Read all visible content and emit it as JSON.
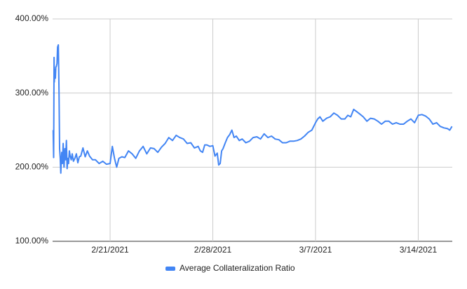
{
  "chart_data": {
    "type": "line",
    "x": [
      48.12,
      48.15,
      48.18,
      48.2,
      48.23,
      48.27,
      48.3,
      48.34,
      48.38,
      48.42,
      48.47,
      48.52,
      48.56,
      48.6,
      48.64,
      48.7,
      48.75,
      48.8,
      48.86,
      48.92,
      48.97,
      49.02,
      49.07,
      49.12,
      49.17,
      49.22,
      49.28,
      49.35,
      49.42,
      49.5,
      49.6,
      49.7,
      49.8,
      49.9,
      50.0,
      50.15,
      50.3,
      50.45,
      50.6,
      50.8,
      51.0,
      51.25,
      51.5,
      51.75,
      52.0,
      52.15,
      52.3,
      52.45,
      52.6,
      52.8,
      53.0,
      53.25,
      53.5,
      53.75,
      54.0,
      54.25,
      54.5,
      54.75,
      55.0,
      55.25,
      55.5,
      55.75,
      56.0,
      56.25,
      56.5,
      56.75,
      57.0,
      57.25,
      57.5,
      57.75,
      58.0,
      58.15,
      58.3,
      58.45,
      58.6,
      58.8,
      59.0,
      59.15,
      59.3,
      59.4,
      59.5,
      59.6,
      59.7,
      59.85,
      60.0,
      60.15,
      60.3,
      60.45,
      60.6,
      60.8,
      61.0,
      61.25,
      61.5,
      61.75,
      62.0,
      62.25,
      62.5,
      62.75,
      63.0,
      63.25,
      63.5,
      63.75,
      64.0,
      64.25,
      64.5,
      64.75,
      65.0,
      65.25,
      65.5,
      65.75,
      66.0,
      66.15,
      66.3,
      66.5,
      66.75,
      67.0,
      67.25,
      67.5,
      67.75,
      68.0,
      68.2,
      68.4,
      68.6,
      68.8,
      69.0,
      69.25,
      69.5,
      69.75,
      70.0,
      70.25,
      70.5,
      70.75,
      71.0,
      71.25,
      71.5,
      71.75,
      72.0,
      72.25,
      72.5,
      72.75,
      73.0,
      73.25,
      73.5,
      73.75,
      74.0,
      74.25,
      74.5,
      74.75,
      75.0,
      75.15,
      75.3
    ],
    "series": [
      {
        "name": "Average Collateralization Ratio",
        "color": "#4285f4",
        "values": [
          250,
          213,
          348,
          315,
          332,
          320,
          335,
          336,
          340,
          362,
          365,
          300,
          225,
          212,
          192,
          220,
          205,
          232,
          200,
          225,
          210,
          236,
          198,
          212,
          205,
          222,
          215,
          210,
          218,
          208,
          212,
          218,
          206,
          214,
          215,
          226,
          214,
          222,
          215,
          210,
          210,
          205,
          208,
          204,
          205,
          228,
          212,
          200,
          212,
          214,
          213,
          222,
          218,
          212,
          222,
          228,
          218,
          226,
          225,
          220,
          227,
          232,
          240,
          236,
          243,
          240,
          238,
          232,
          233,
          226,
          228,
          222,
          220,
          230,
          230,
          228,
          229,
          215,
          219,
          203,
          205,
          222,
          225,
          233,
          240,
          244,
          250,
          240,
          242,
          236,
          238,
          233,
          235,
          240,
          241,
          238,
          245,
          240,
          242,
          238,
          237,
          233,
          233,
          235,
          235,
          236,
          238,
          242,
          247,
          250,
          260,
          265,
          268,
          262,
          266,
          268,
          273,
          270,
          265,
          265,
          270,
          268,
          278,
          275,
          272,
          268,
          262,
          266,
          265,
          262,
          258,
          262,
          262,
          258,
          260,
          258,
          258,
          262,
          265,
          260,
          270,
          271,
          269,
          265,
          258,
          260,
          255,
          253,
          252,
          250,
          255
        ]
      }
    ],
    "xlim": [
      48.08,
      75.32
    ],
    "xticks": [
      {
        "value": 52,
        "label": "2/21/2021"
      },
      {
        "value": 59,
        "label": "2/28/2021"
      },
      {
        "value": 66,
        "label": "3/7/2021"
      },
      {
        "value": 73,
        "label": "3/14/2021"
      }
    ],
    "ylim": [
      100,
      400
    ],
    "yticks": [
      {
        "value": 100,
        "label": "100.00%"
      },
      {
        "value": 200,
        "label": "200.00%"
      },
      {
        "value": 300,
        "label": "300.00%"
      },
      {
        "value": 400,
        "label": "400.00%"
      }
    ],
    "grid": true,
    "legend": "bottom"
  }
}
